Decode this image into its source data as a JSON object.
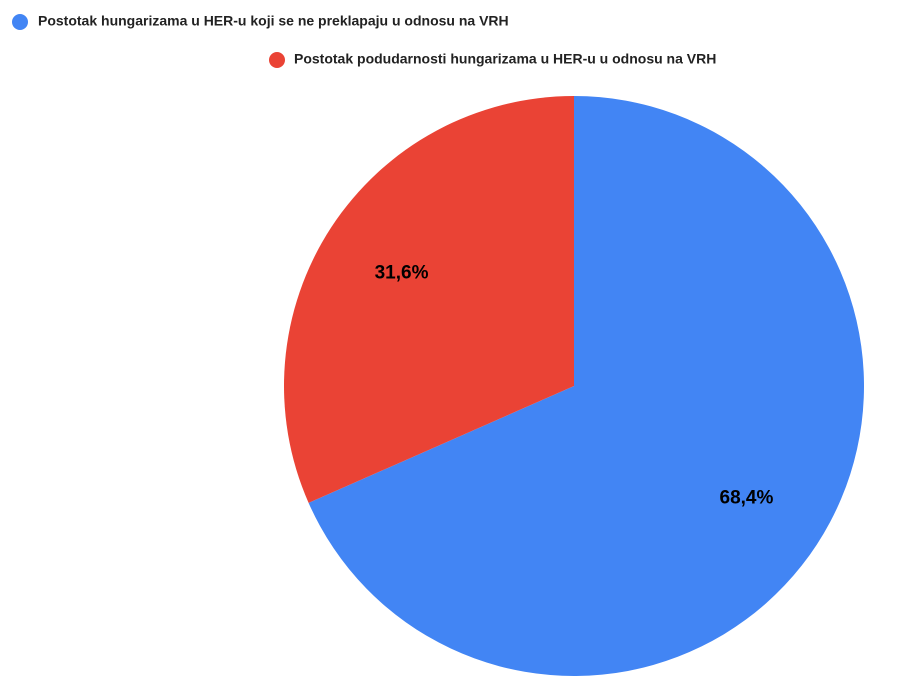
{
  "chart_data": {
    "type": "pie",
    "categories": [
      "Postotak hungarizama u HER-u koji se ne preklapaju u odnosu na VRH",
      "Postotak podudarnosti hungarizama u HER-u u odnosu na VRH"
    ],
    "values": [
      68.4,
      31.6
    ],
    "value_labels": [
      "68,4%",
      "31,6%"
    ],
    "colors": [
      "#4285f4",
      "#ea4335"
    ],
    "legend": "top"
  }
}
